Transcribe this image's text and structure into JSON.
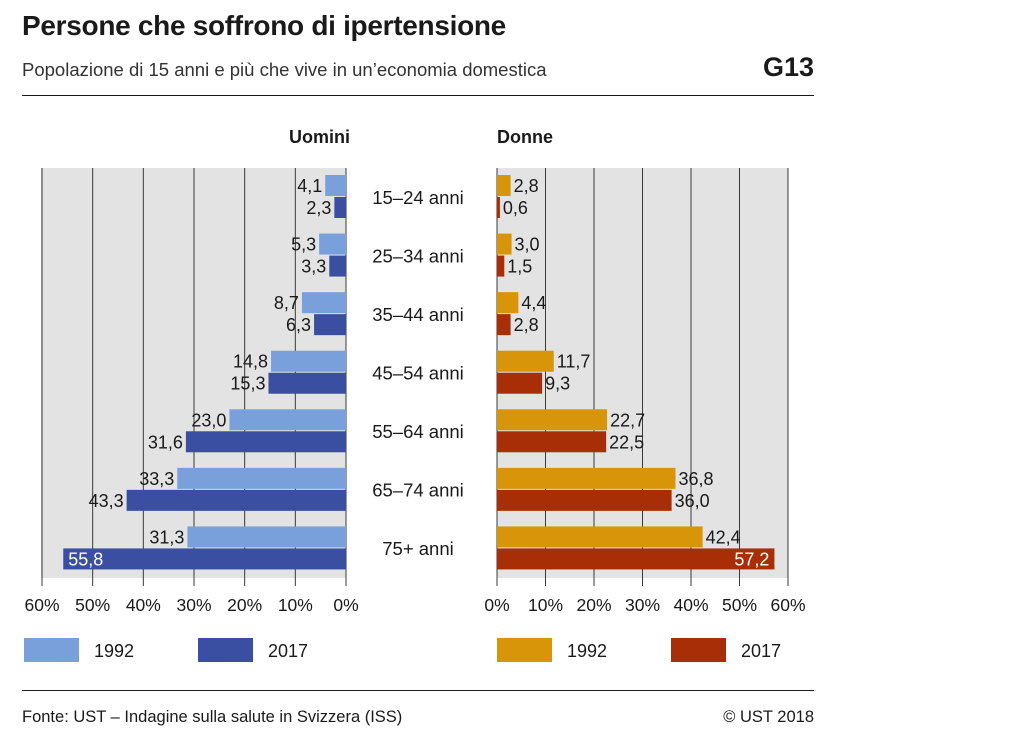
{
  "header": {
    "title": "Persone che soffrono di ipertensione",
    "subtitle": "Popolazione di 15 anni e più che vive in un’economia domestica",
    "code": "G13"
  },
  "footer": {
    "source": "Fonte: UST – Indagine sulla salute in Svizzera (ISS)",
    "copyright": "© UST 2018"
  },
  "chart_data": {
    "type": "bar",
    "orientation": "horizontal",
    "layout": "population-pyramid",
    "unit": "%",
    "categories": [
      "15–24 anni",
      "25–34 anni",
      "35–44 anni",
      "45–54 anni",
      "55–64 anni",
      "65–74 anni",
      "75+ anni"
    ],
    "xlim": [
      0,
      60
    ],
    "ticks": [
      0,
      10,
      20,
      30,
      40,
      50,
      60
    ],
    "tick_labels": [
      "0%",
      "10%",
      "20%",
      "30%",
      "40%",
      "50%",
      "60%"
    ],
    "grid": true,
    "legend_position": "bottom",
    "panels": [
      {
        "name": "Uomini",
        "direction": "left",
        "series": [
          {
            "name": "1992",
            "color": "#7aa0dc",
            "values": [
              "4,1",
              "5,3",
              "8,7",
              "14,8",
              "23,0",
              "33,3",
              "31,3"
            ]
          },
          {
            "name": "2017",
            "color": "#3a4fa2",
            "values": [
              "2,3",
              "3,3",
              "6,3",
              "15,3",
              "31,6",
              "43,3",
              "55,8"
            ]
          }
        ]
      },
      {
        "name": "Donne",
        "direction": "right",
        "series": [
          {
            "name": "1992",
            "color": "#d9950a",
            "values": [
              "2,8",
              "3,0",
              "4,4",
              "11,7",
              "22,7",
              "36,8",
              "42,4"
            ]
          },
          {
            "name": "2017",
            "color": "#a82e08",
            "values": [
              "0,6",
              "1,5",
              "2,8",
              "9,3",
              "22,5",
              "36,0",
              "57,2"
            ]
          }
        ]
      }
    ]
  }
}
